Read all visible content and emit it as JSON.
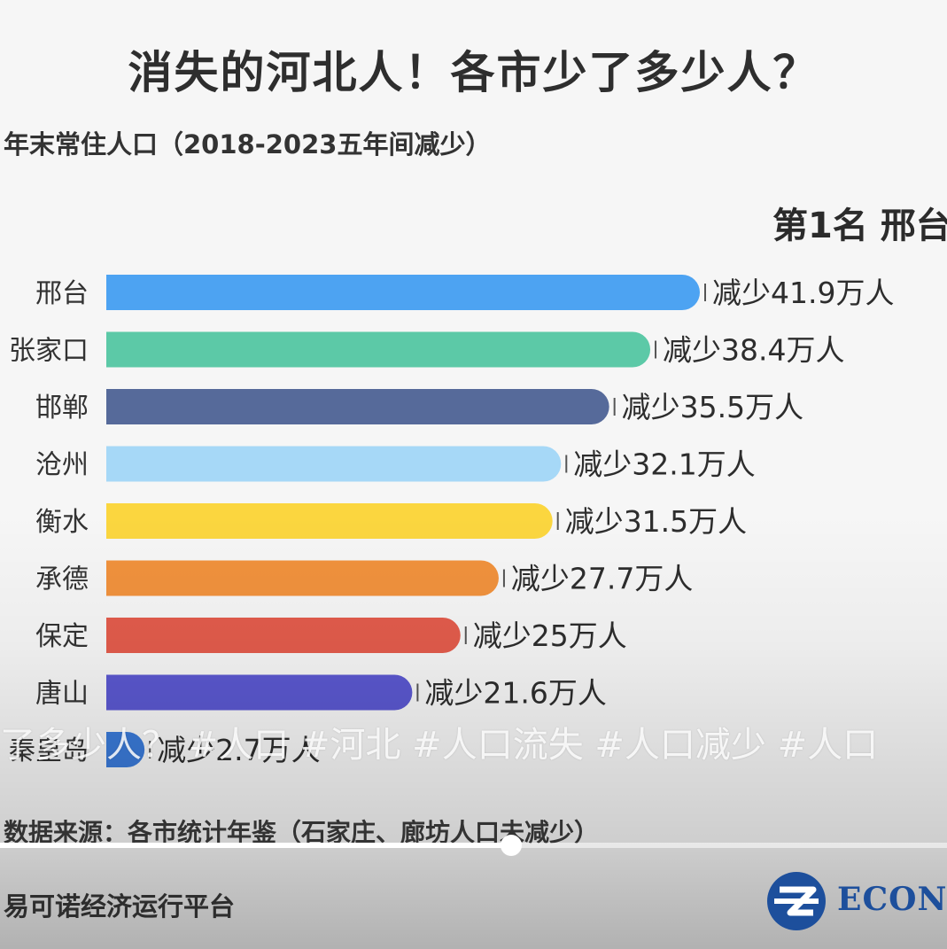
{
  "title": "消失的河北人！各市少了多少人？",
  "subtitle": "年末常住人口（2018-2023五年间减少）",
  "rank_text": "第1名 邢台",
  "chart_data": {
    "type": "bar",
    "orientation": "horizontal",
    "title": "消失的河北人！各市少了多少人？",
    "subtitle": "年末常住人口（2018-2023五年间减少）",
    "categories": [
      "邢台",
      "张家口",
      "邯郸",
      "沧州",
      "衡水",
      "承德",
      "保定",
      "唐山",
      "秦皇岛"
    ],
    "values": [
      41.9,
      38.4,
      35.5,
      32.1,
      31.5,
      27.7,
      25,
      21.6,
      2.7
    ],
    "value_labels": [
      "减少41.9万人",
      "减少38.4万人",
      "减少35.5万人",
      "减少32.1万人",
      "减少31.5万人",
      "减少27.7万人",
      "减少25万人",
      "减少21.6万人",
      "减少2.7万人"
    ],
    "colors": [
      "#4da3f2",
      "#5cc9a7",
      "#566a9a",
      "#a6d8f7",
      "#fbd63f",
      "#f1923d",
      "#e35c4c",
      "#5b58d0",
      "#3a7ad8"
    ],
    "xlim": [
      0,
      42
    ],
    "grid": false,
    "legend": "none"
  },
  "overlay": {
    "hashtags": "了多少人？ #人口 #河北 #人口流失 #人口减少 #人口",
    "progress": 0.54
  },
  "footer": {
    "source": "数据来源：各市统计年鉴（石家庄、廊坊人口未减少）",
    "platform": "易可诺经济运行平台",
    "logo_text": "ECONC",
    "logo_icon": "econ-logo-icon"
  }
}
